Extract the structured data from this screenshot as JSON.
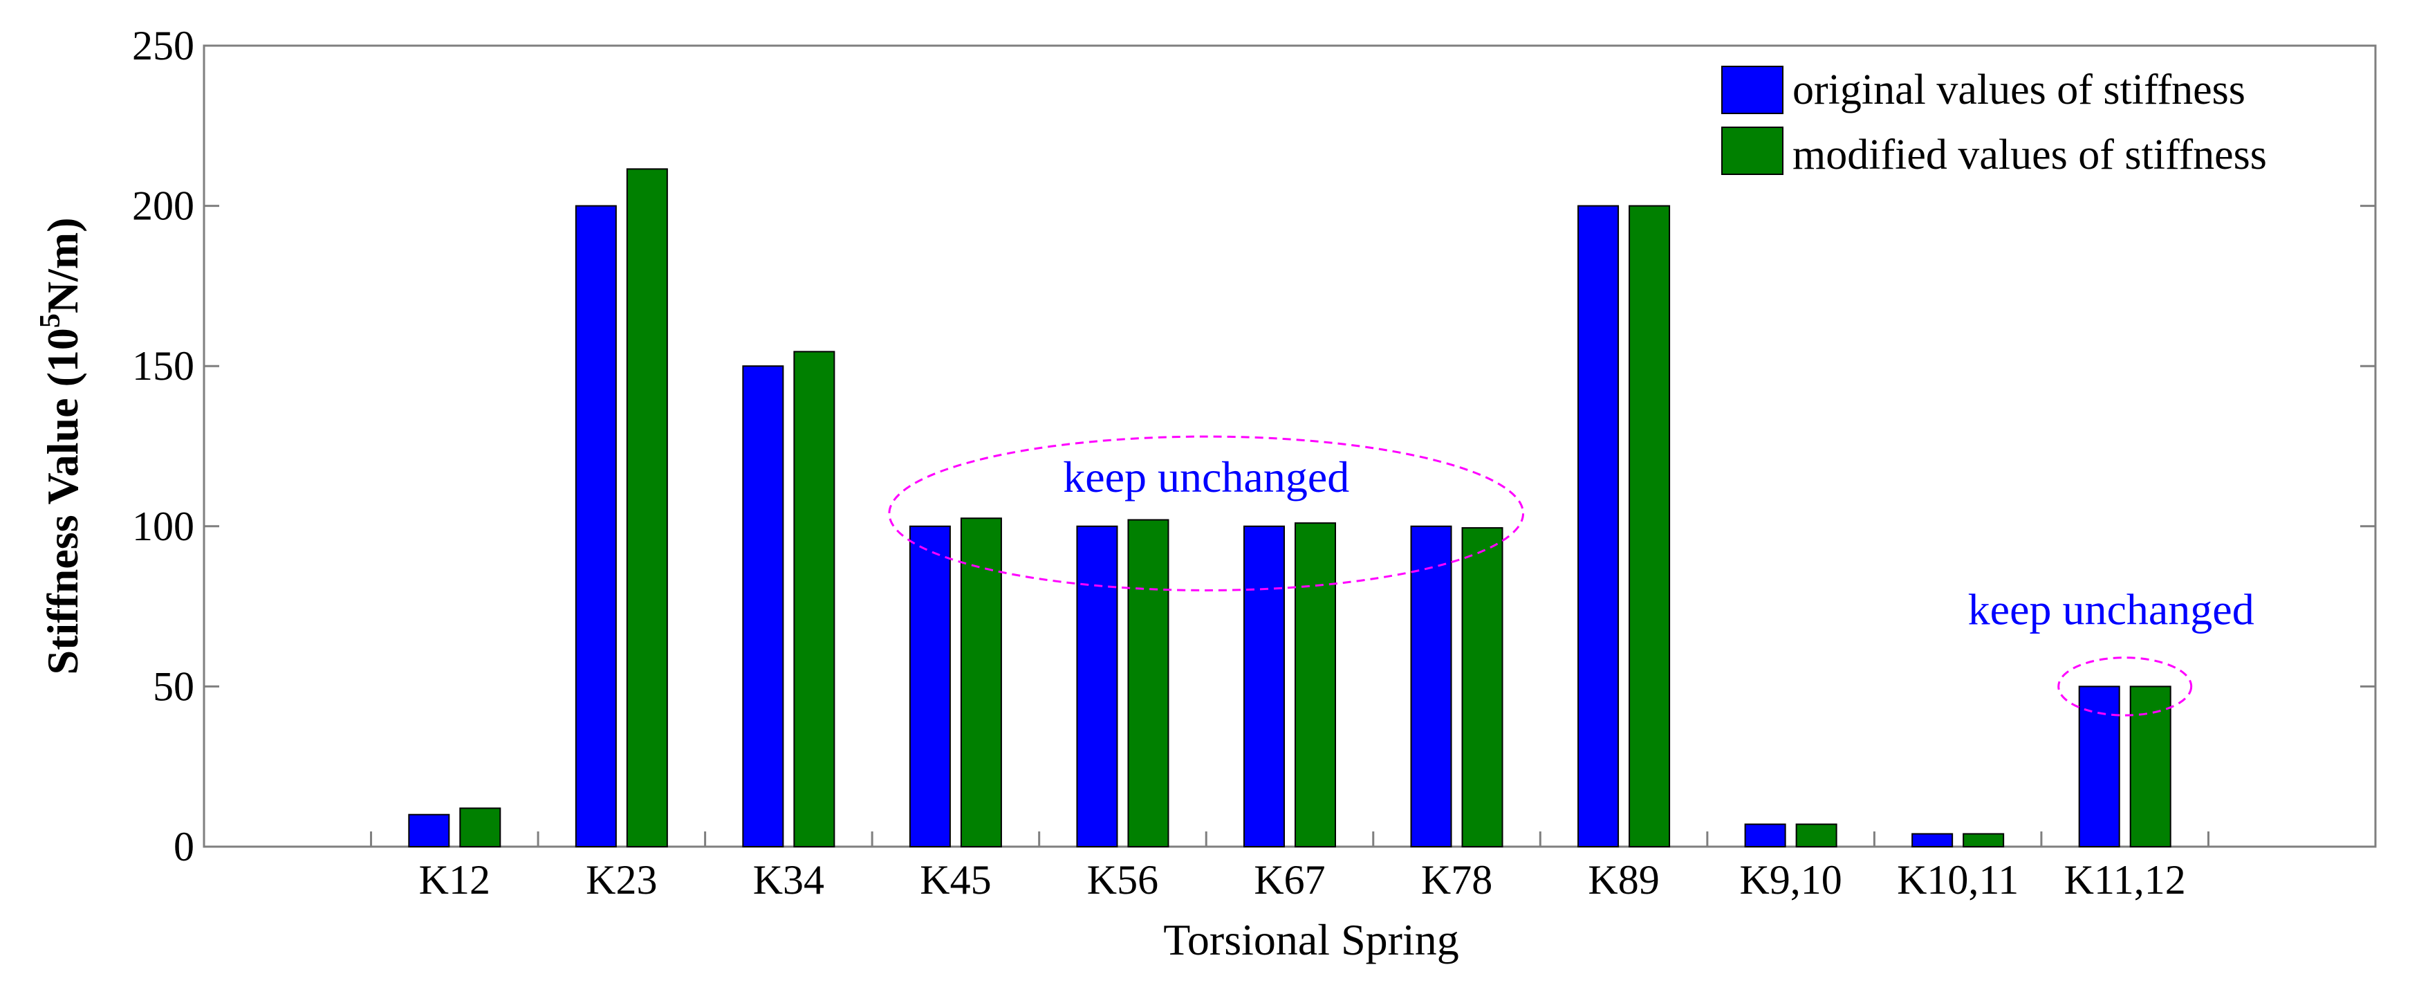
{
  "chart_data": {
    "type": "bar",
    "title": "",
    "xlabel": "Torsional Spring",
    "ylabel": "Stiffness Value (10",
    "ylabel_superscript": "5",
    "ylabel_suffix": "N/m)",
    "ylim": [
      0,
      250
    ],
    "yticks": [
      0,
      50,
      100,
      150,
      200,
      250
    ],
    "grid": false,
    "legend_position": "top-right",
    "categories": [
      "K12",
      "K23",
      "K34",
      "K45",
      "K56",
      "K67",
      "K78",
      "K89",
      "K9,10",
      "K10,11",
      "K11,12"
    ],
    "x_slots": 13,
    "first_category_slot": 2,
    "series": [
      {
        "name": "original values of stiffness",
        "color": "#0000ff",
        "values": [
          10,
          200,
          150,
          100,
          100,
          100,
          100,
          200,
          7,
          4,
          50
        ]
      },
      {
        "name": "modified values of stiffness",
        "color": "#008000",
        "values": [
          12,
          211.5,
          154.5,
          102.5,
          102,
          101,
          99.5,
          200,
          7,
          4,
          50
        ]
      }
    ],
    "annotations": [
      {
        "text": "keep unchanged",
        "text_color": "#0000ff",
        "ellipse_color": "#ff00ff",
        "covers_categories": [
          "K45",
          "K56",
          "K67",
          "K78"
        ],
        "ellipse_center_value": 104,
        "ellipse_value_halfheight": 24
      },
      {
        "text": "keep unchanged",
        "text_color": "#0000ff",
        "ellipse_color": "#ff00ff",
        "covers_categories": [
          "K11,12"
        ],
        "ellipse_center_value": 50,
        "ellipse_value_halfheight": 9
      }
    ]
  }
}
